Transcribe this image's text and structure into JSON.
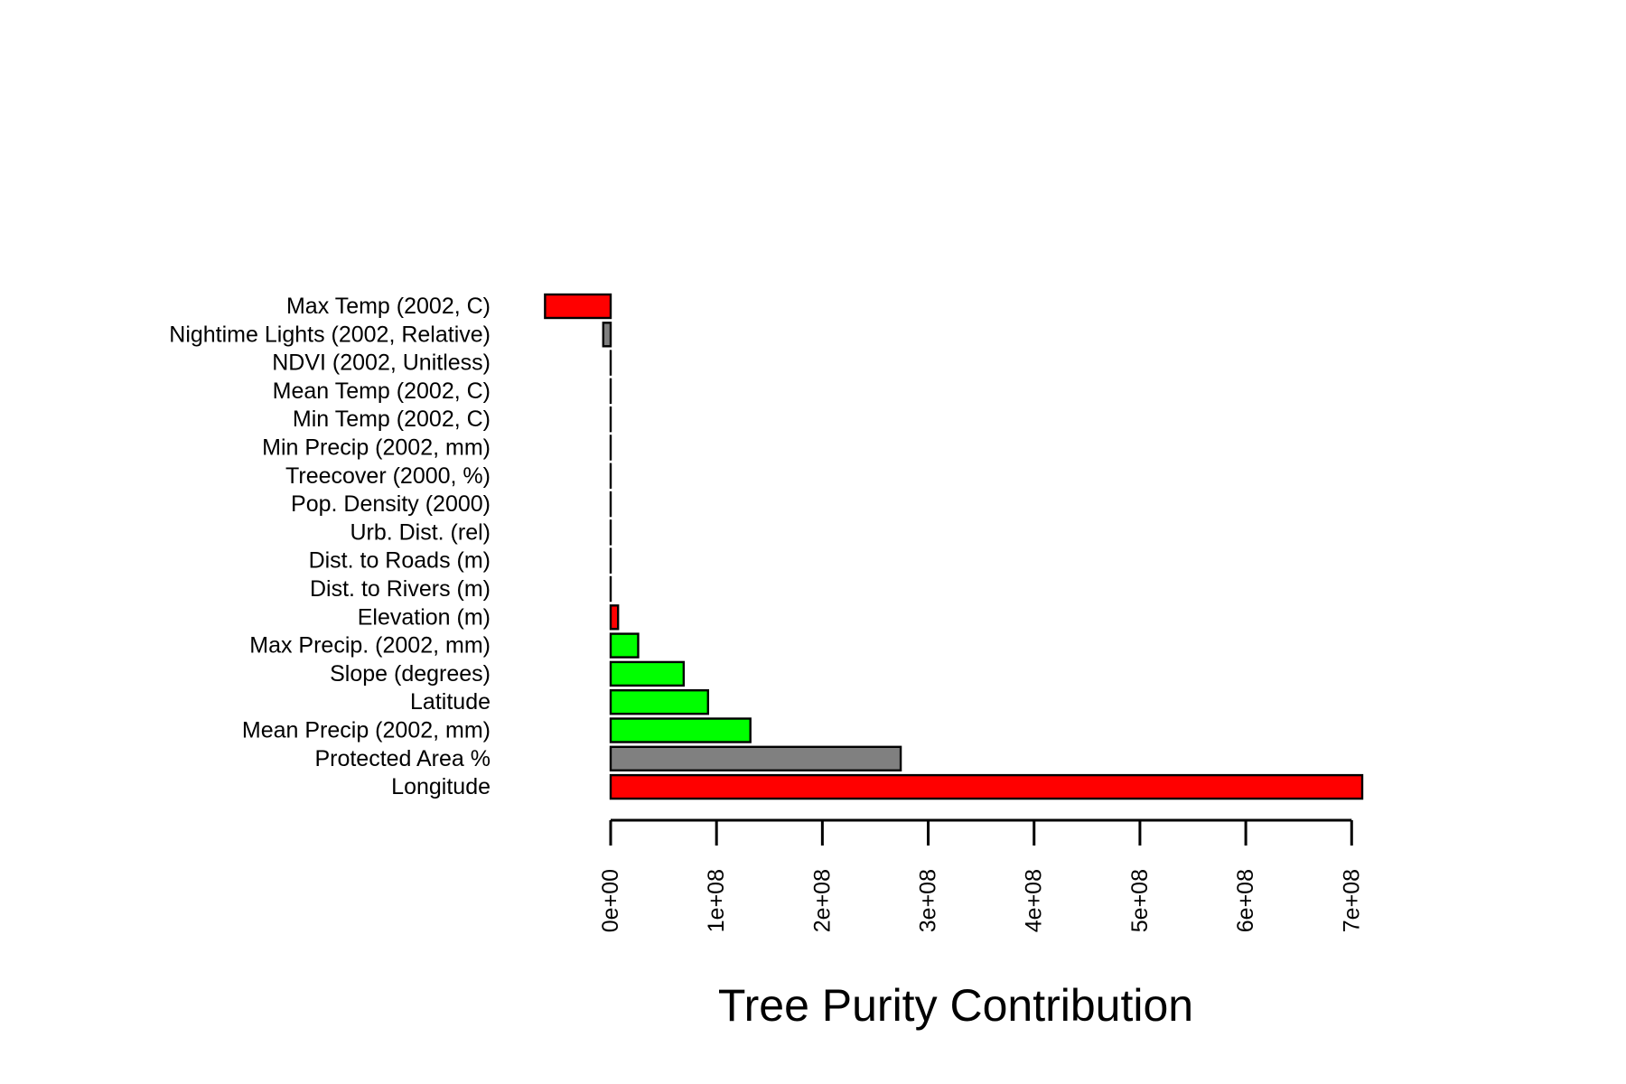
{
  "chart_data": {
    "type": "bar",
    "orientation": "horizontal",
    "title": "",
    "xlabel": "Tree Purity Contribution",
    "ylabel": "",
    "xlim": [
      -62000000,
      710000000
    ],
    "grid": false,
    "legend": "none",
    "x_ticks": [
      0,
      100000000,
      200000000,
      300000000,
      400000000,
      500000000,
      600000000,
      700000000
    ],
    "x_tick_labels": [
      "0e+00",
      "1e+08",
      "2e+08",
      "3e+08",
      "4e+08",
      "5e+08",
      "6e+08",
      "7e+08"
    ],
    "categories": [
      "Max Temp (2002, C)",
      "Nightime Lights (2002, Relative)",
      "NDVI (2002, Unitless)",
      "Mean Temp (2002, C)",
      "Min Temp (2002, C)",
      "Min Precip (2002, mm)",
      "Treecover (2000, %)",
      "Pop. Density (2000)",
      "Urb. Dist. (rel)",
      "Dist. to Roads (m)",
      "Dist. to Rivers (m)",
      "Elevation (m)",
      "Max Precip. (2002, mm)",
      "Slope (degrees)",
      "Latitude",
      "Mean Precip (2002, mm)",
      "Protected Area %",
      "Longitude"
    ],
    "values": [
      -62000000,
      -7000000,
      0,
      0,
      0,
      0,
      0,
      0,
      0,
      0,
      0,
      7000000,
      26000000,
      69000000,
      92000000,
      132000000,
      274000000,
      710000000
    ],
    "colors": [
      "#ff0000",
      "#808080",
      "#808080",
      "#808080",
      "#808080",
      "#808080",
      "#808080",
      "#808080",
      "#808080",
      "#808080",
      "#808080",
      "#ff0000",
      "#00ff00",
      "#00ff00",
      "#00ff00",
      "#00ff00",
      "#808080",
      "#ff0000"
    ]
  }
}
